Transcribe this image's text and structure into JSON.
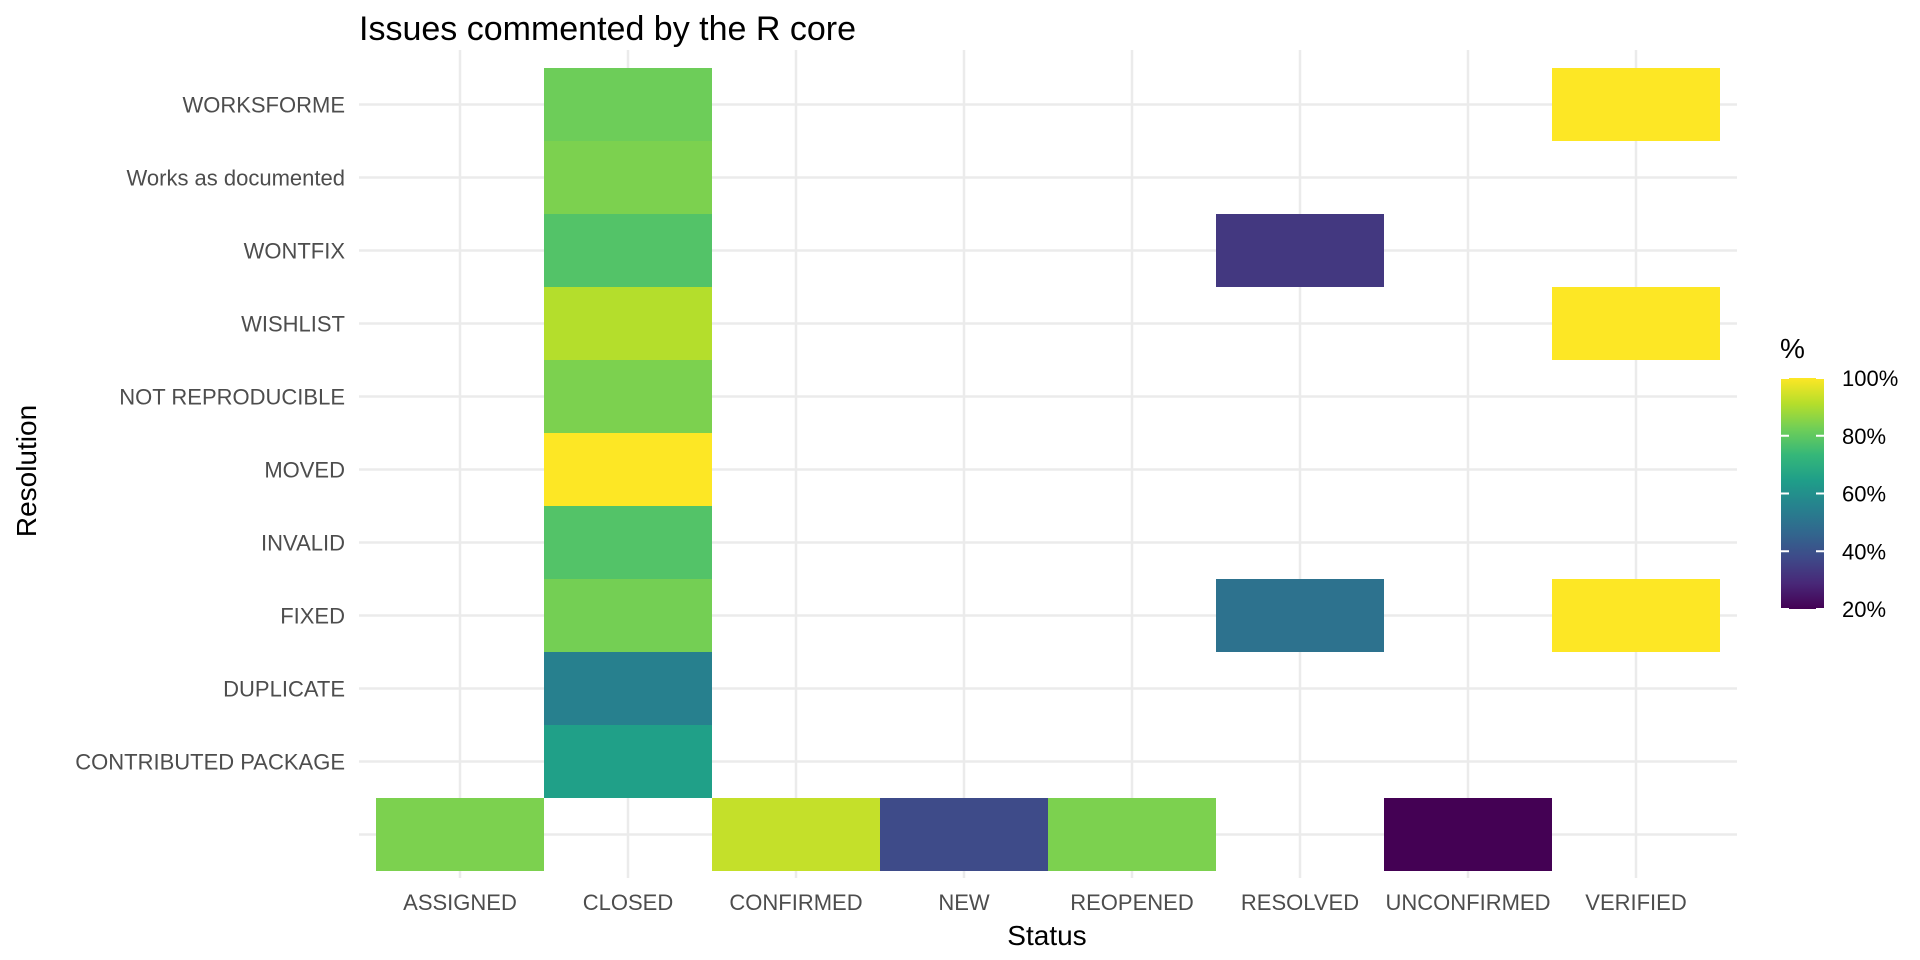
{
  "chart_data": {
    "type": "heatmap",
    "title": "Issues commented by the R core",
    "xlabel": "Status",
    "ylabel": "Resolution",
    "x_categories": [
      "ASSIGNED",
      "CLOSED",
      "CONFIRMED",
      "NEW",
      "REOPENED",
      "RESOLVED",
      "UNCONFIRMED",
      "VERIFIED"
    ],
    "y_categories": [
      "",
      "CONTRIBUTED PACKAGE",
      "DUPLICATE",
      "FIXED",
      "INVALID",
      "MOVED",
      "NOT REPRODUCIBLE",
      "WISHLIST",
      "WONTFIX",
      "Works as documented",
      "WORKSFORME"
    ],
    "cells": [
      {
        "x": "ASSIGNED",
        "y": "",
        "value": 84
      },
      {
        "x": "CONFIRMED",
        "y": "",
        "value": 93
      },
      {
        "x": "NEW",
        "y": "",
        "value": 38
      },
      {
        "x": "REOPENED",
        "y": "",
        "value": 84
      },
      {
        "x": "UNCONFIRMED",
        "y": "",
        "value": 20
      },
      {
        "x": "CLOSED",
        "y": "CONTRIBUTED PACKAGE",
        "value": 65
      },
      {
        "x": "CLOSED",
        "y": "DUPLICATE",
        "value": 55
      },
      {
        "x": "CLOSED",
        "y": "FIXED",
        "value": 83
      },
      {
        "x": "RESOLVED",
        "y": "FIXED",
        "value": 50
      },
      {
        "x": "VERIFIED",
        "y": "FIXED",
        "value": 100
      },
      {
        "x": "CLOSED",
        "y": "INVALID",
        "value": 78
      },
      {
        "x": "CLOSED",
        "y": "MOVED",
        "value": 100
      },
      {
        "x": "CLOSED",
        "y": "NOT REPRODUCIBLE",
        "value": 84
      },
      {
        "x": "CLOSED",
        "y": "WISHLIST",
        "value": 91
      },
      {
        "x": "VERIFIED",
        "y": "WISHLIST",
        "value": 100
      },
      {
        "x": "CLOSED",
        "y": "WONTFIX",
        "value": 78
      },
      {
        "x": "RESOLVED",
        "y": "WONTFIX",
        "value": 33
      },
      {
        "x": "CLOSED",
        "y": "Works as documented",
        "value": 84
      },
      {
        "x": "CLOSED",
        "y": "WORKSFORME",
        "value": 82
      },
      {
        "x": "VERIFIED",
        "y": "WORKSFORME",
        "value": 100
      }
    ],
    "color_scale": {
      "name": "viridis",
      "domain": [
        20,
        100
      ],
      "stops": [
        "#440154",
        "#482878",
        "#3e4a89",
        "#31688e",
        "#26828e",
        "#1f9e89",
        "#35b779",
        "#6ece58",
        "#b5de2b",
        "#fde725"
      ]
    },
    "legend": {
      "title": "%",
      "position": "right",
      "breaks": [
        100,
        80,
        60,
        40,
        20
      ],
      "labels": [
        "100%",
        "80%",
        "60%",
        "40%",
        "20%"
      ]
    },
    "grid": true
  }
}
